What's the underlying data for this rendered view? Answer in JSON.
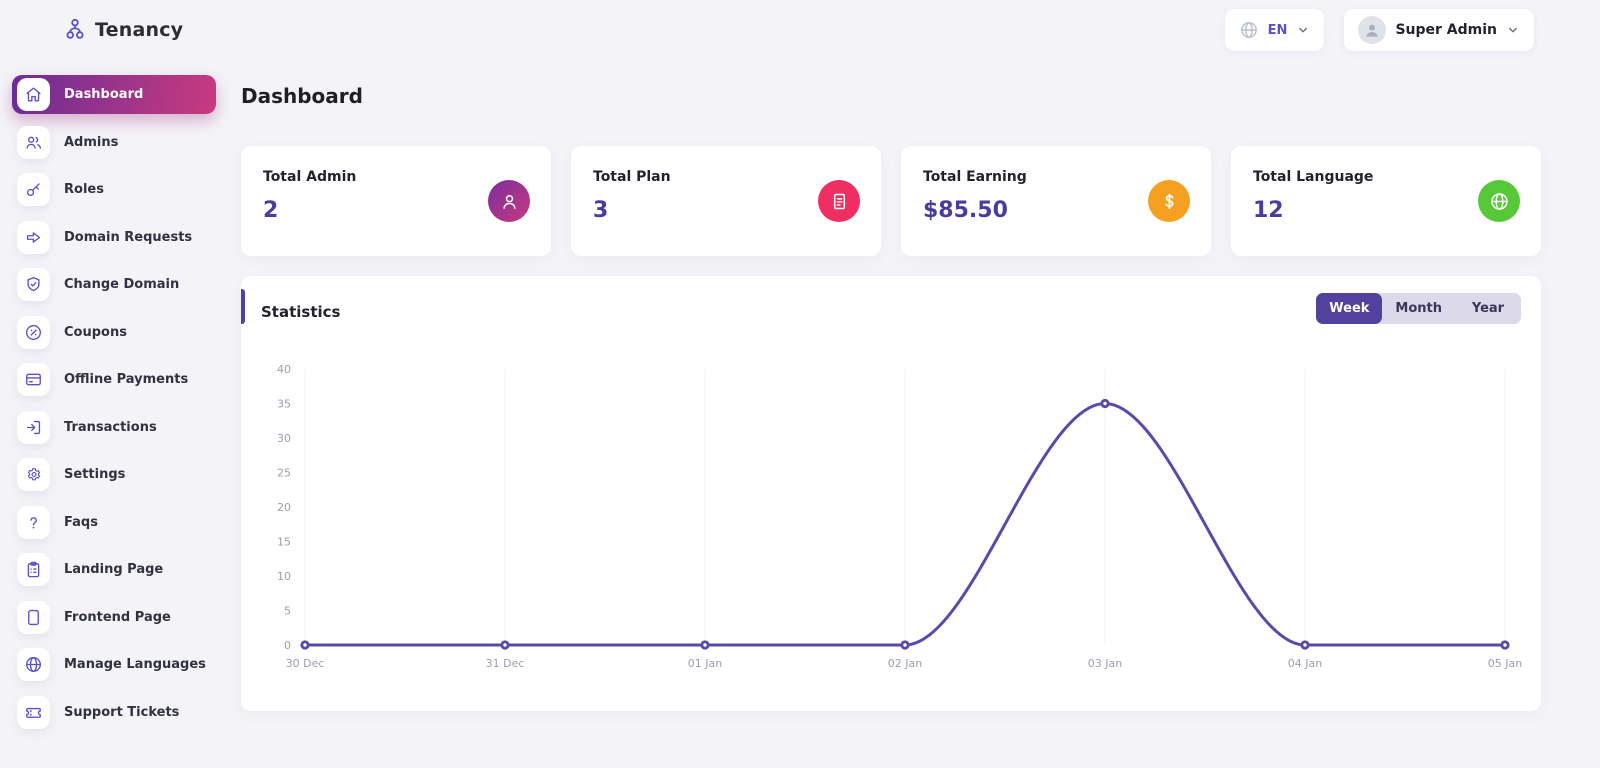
{
  "brand": {
    "name": "Tenancy"
  },
  "topbar": {
    "language": {
      "code": "EN"
    },
    "user": {
      "name": "Super Admin"
    }
  },
  "sidebar": {
    "items": [
      {
        "label": "Dashboard",
        "icon": "home",
        "active": true
      },
      {
        "label": "Admins",
        "icon": "users",
        "active": false
      },
      {
        "label": "Roles",
        "icon": "key",
        "active": false
      },
      {
        "label": "Domain Requests",
        "icon": "arrow-right",
        "active": false
      },
      {
        "label": "Change Domain",
        "icon": "shield-check",
        "active": false
      },
      {
        "label": "Coupons",
        "icon": "percent",
        "active": false
      },
      {
        "label": "Offline Payments",
        "icon": "credit-card",
        "active": false
      },
      {
        "label": "Transactions",
        "icon": "import",
        "active": false
      },
      {
        "label": "Settings",
        "icon": "gear",
        "active": false
      },
      {
        "label": "Faqs",
        "icon": "question",
        "active": false
      },
      {
        "label": "Landing Page",
        "icon": "clipboard",
        "active": false
      },
      {
        "label": "Frontend Page",
        "icon": "tablet",
        "active": false
      },
      {
        "label": "Manage Languages",
        "icon": "globe",
        "active": false
      },
      {
        "label": "Support Tickets",
        "icon": "ticket",
        "active": false
      }
    ]
  },
  "page": {
    "title": "Dashboard"
  },
  "stat_cards": [
    {
      "label": "Total Admin",
      "value": "2",
      "icon": "person",
      "badge_colors": [
        "#7b2f9e",
        "#c9397d"
      ]
    },
    {
      "label": "Total Plan",
      "value": "3",
      "icon": "doc-lines",
      "badge_colors": [
        "#ef2e62"
      ]
    },
    {
      "label": "Total Earning",
      "value": "$85.50",
      "icon": "dollar",
      "badge_colors": [
        "#f6a021"
      ]
    },
    {
      "label": "Total Language",
      "value": "12",
      "icon": "globe",
      "badge_colors": [
        "#57c837"
      ]
    }
  ],
  "statistics": {
    "title": "Statistics",
    "tabs": [
      {
        "label": "Week",
        "active": true
      },
      {
        "label": "Month",
        "active": false
      },
      {
        "label": "Year",
        "active": false
      }
    ]
  },
  "chart_data": {
    "type": "line",
    "title": "Statistics",
    "x": [
      "30 Dec",
      "31 Dec",
      "01 Jan",
      "02 Jan",
      "03 Jan",
      "04 Jan",
      "05 Jan"
    ],
    "series": [
      {
        "name": "Week",
        "values": [
          0,
          0,
          0,
          0,
          35,
          0,
          0
        ]
      }
    ],
    "xlabel": "",
    "ylabel": "",
    "ylim": [
      0,
      40
    ],
    "ytick_step": 5,
    "grid": "vertical-only",
    "legend": "none",
    "smoothing": "monotone",
    "line_color": "#584aa8",
    "marker": "donut"
  },
  "colors": {
    "accent": "#5a50c8",
    "gradient_from": "#6a2d96",
    "gradient_to": "#c93a7e",
    "value_text": "#4a3c9f",
    "tab_active_bg": "#52429e",
    "tab_bg": "#dcd9ea",
    "grid_line": "#f0f0f4",
    "tick_text": "#9aa0ab"
  }
}
